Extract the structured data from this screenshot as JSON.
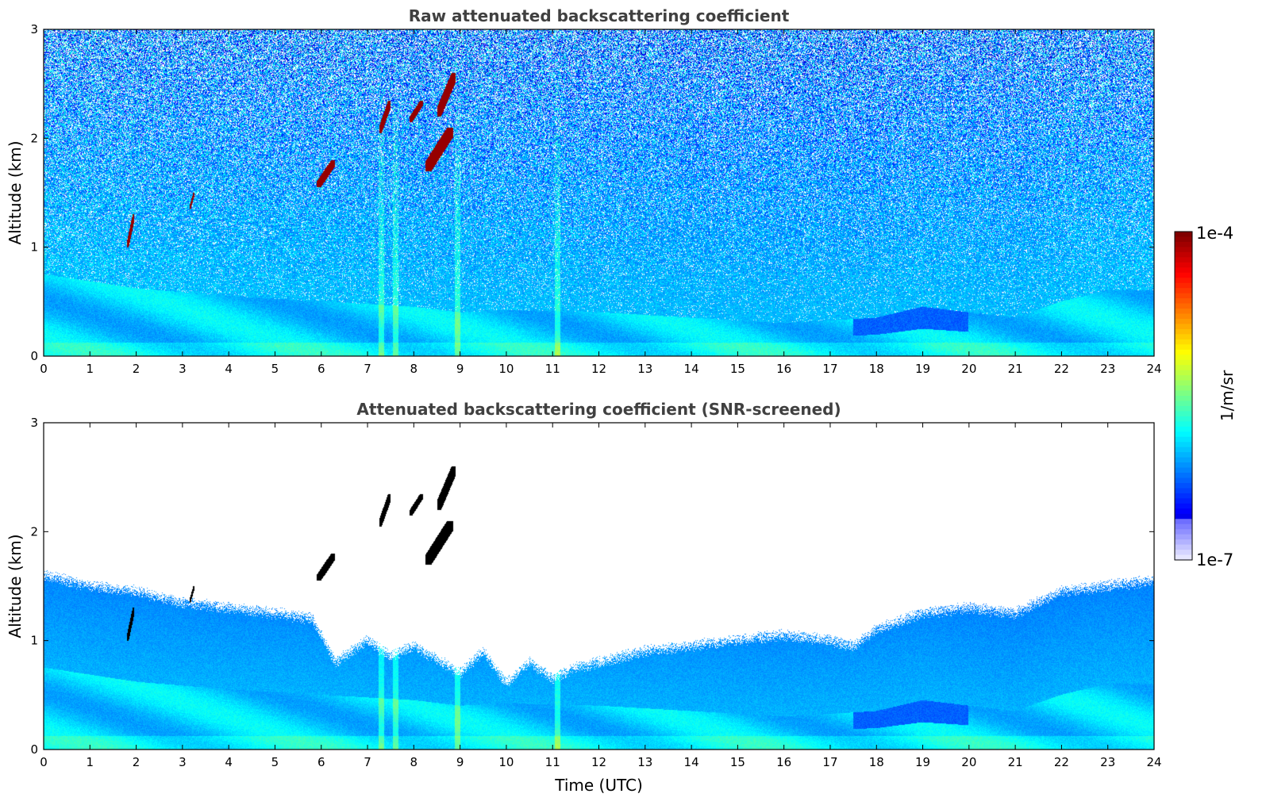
{
  "chart_data": [
    {
      "type": "heatmap",
      "title": "Raw attenuated backscattering coefficient",
      "xlabel": "",
      "ylabel": "Altitude (km)",
      "xlim": [
        0,
        24
      ],
      "ylim": [
        0,
        3
      ],
      "xticks": [
        "0",
        "1",
        "2",
        "3",
        "4",
        "5",
        "6",
        "7",
        "8",
        "9",
        "10",
        "11",
        "12",
        "13",
        "14",
        "15",
        "16",
        "17",
        "18",
        "19",
        "20",
        "21",
        "22",
        "23",
        "24"
      ],
      "yticks": [
        "0",
        "1",
        "2",
        "3"
      ],
      "screened": false,
      "features": {
        "boundary_layer_top_km": [
          [
            0,
            0.75
          ],
          [
            2,
            0.62
          ],
          [
            4,
            0.55
          ],
          [
            6,
            0.5
          ],
          [
            8,
            0.45
          ],
          [
            9,
            0.4
          ],
          [
            10,
            0.42
          ],
          [
            12,
            0.4
          ],
          [
            14,
            0.35
          ],
          [
            16,
            0.3
          ],
          [
            18,
            0.35
          ],
          [
            19,
            0.45
          ],
          [
            21,
            0.35
          ],
          [
            22,
            0.5
          ],
          [
            23,
            0.6
          ],
          [
            24,
            0.6
          ]
        ],
        "clouds": [
          {
            "t0": 1.8,
            "t1": 1.95,
            "z0": 1.0,
            "z1": 1.3
          },
          {
            "t0": 3.15,
            "t1": 3.25,
            "z0": 1.35,
            "z1": 1.5
          },
          {
            "t0": 5.9,
            "t1": 6.3,
            "z0": 1.55,
            "z1": 1.8
          },
          {
            "t0": 7.25,
            "t1": 7.5,
            "z0": 2.05,
            "z1": 2.35
          },
          {
            "t0": 7.9,
            "t1": 8.2,
            "z0": 2.15,
            "z1": 2.35
          },
          {
            "t0": 8.25,
            "t1": 8.85,
            "z0": 1.7,
            "z1": 2.1
          },
          {
            "t0": 8.5,
            "t1": 8.9,
            "z0": 2.2,
            "z1": 2.6
          }
        ],
        "precip_streaks": [
          8.95,
          11.1,
          7.3,
          7.6
        ]
      }
    },
    {
      "type": "heatmap",
      "title": "Attenuated backscattering coefficient (SNR-screened)",
      "xlabel": "Time (UTC)",
      "ylabel": "Altitude (km)",
      "xlim": [
        0,
        24
      ],
      "ylim": [
        0,
        3
      ],
      "xticks": [
        "0",
        "1",
        "2",
        "3",
        "4",
        "5",
        "6",
        "7",
        "8",
        "9",
        "10",
        "11",
        "12",
        "13",
        "14",
        "15",
        "16",
        "17",
        "18",
        "19",
        "20",
        "21",
        "22",
        "23",
        "24"
      ],
      "yticks": [
        "0",
        "1",
        "2",
        "3"
      ],
      "screened": true,
      "signal_top_km": [
        [
          0,
          1.6
        ],
        [
          1,
          1.5
        ],
        [
          2,
          1.45
        ],
        [
          3,
          1.35
        ],
        [
          4,
          1.3
        ],
        [
          5,
          1.25
        ],
        [
          5.8,
          1.2
        ],
        [
          6.3,
          0.8
        ],
        [
          7,
          1.0
        ],
        [
          7.5,
          0.85
        ],
        [
          8,
          0.95
        ],
        [
          9,
          0.7
        ],
        [
          9.5,
          0.9
        ],
        [
          10,
          0.6
        ],
        [
          10.5,
          0.8
        ],
        [
          11,
          0.65
        ],
        [
          11.5,
          0.75
        ],
        [
          12,
          0.8
        ],
        [
          13,
          0.9
        ],
        [
          14,
          0.95
        ],
        [
          15,
          1.0
        ],
        [
          16,
          1.05
        ],
        [
          17,
          1.0
        ],
        [
          17.5,
          0.95
        ],
        [
          18,
          1.1
        ],
        [
          19,
          1.25
        ],
        [
          20,
          1.3
        ],
        [
          21,
          1.25
        ],
        [
          21.5,
          1.35
        ],
        [
          22,
          1.45
        ],
        [
          23,
          1.5
        ],
        [
          24,
          1.55
        ]
      ]
    }
  ],
  "colorbar": {
    "max_label": "1e-4",
    "min_label": "1e-7",
    "unit_label": "1/m/sr"
  }
}
